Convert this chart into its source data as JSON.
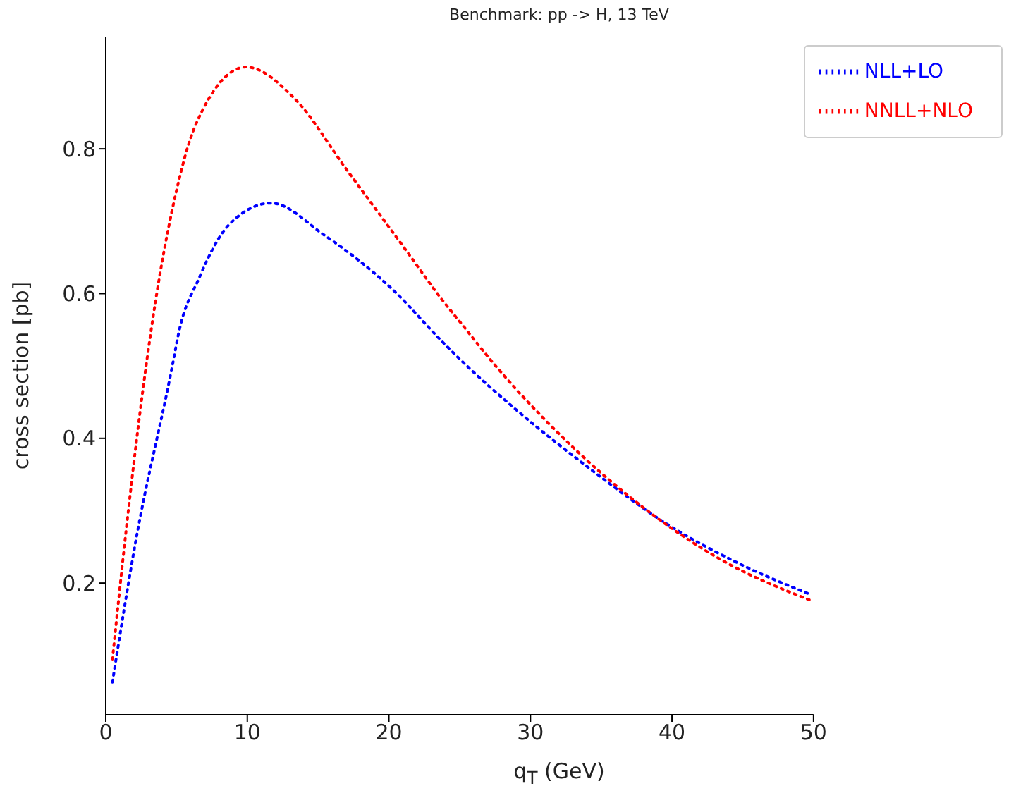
{
  "chart_data": {
    "type": "line",
    "title": "Benchmark: pp -> H, 13 TeV",
    "xlabel": "q$_{T}$ (GeV)",
    "ylabel": "cross section [pb]",
    "xlim": [
      0,
      50
    ],
    "xticks": [
      0,
      10,
      20,
      30,
      40,
      50
    ],
    "ylim": [
      0.018,
      0.955
    ],
    "yticks": [
      0.2,
      0.4,
      0.6,
      0.8
    ],
    "grid": false,
    "legend": "top right",
    "marker": "none",
    "line_style": "dotted",
    "series": [
      {
        "name": "NLL+LO",
        "color": "#0000ff",
        "x": [
          0.47,
          2.1,
          4.82,
          5.07,
          6.63,
          8.7,
          11.68,
          15.42,
          20.35,
          23.7,
          25.14,
          28.9,
          34.07,
          39.77,
          44.95,
          49.8
        ],
        "values": [
          0.063,
          0.256,
          0.512,
          0.538,
          0.623,
          0.695,
          0.725,
          0.681,
          0.604,
          0.535,
          0.507,
          0.441,
          0.36,
          0.28,
          0.225,
          0.184
        ]
      },
      {
        "name": "NNLL+NLO",
        "color": "#ff0000",
        "x": [
          0.47,
          1.45,
          2.92,
          3.52,
          4.82,
          6.37,
          9.92,
          13.36,
          16.99,
          21.13,
          23.7,
          25.14,
          27.59,
          32.77,
          38.2,
          43.4,
          49.8
        ],
        "values": [
          0.094,
          0.275,
          0.51,
          0.59,
          0.727,
          0.834,
          0.913,
          0.869,
          0.772,
          0.662,
          0.593,
          0.558,
          0.499,
          0.392,
          0.301,
          0.233,
          0.176
        ]
      }
    ]
  }
}
